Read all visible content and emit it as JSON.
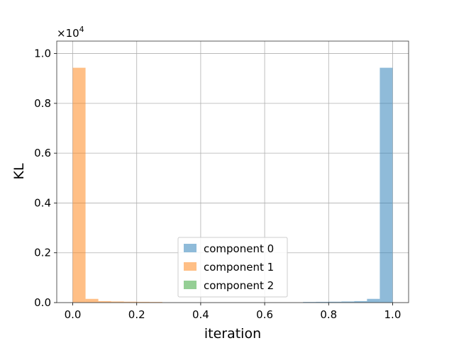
{
  "chart_data": {
    "type": "bar",
    "xlabel": "iteration",
    "ylabel": "KL",
    "scale_label": "×10",
    "scale_exponent": "4",
    "xlim": [
      -0.05,
      1.05
    ],
    "ylim": [
      0,
      10500
    ],
    "grid": true,
    "legend_position": "lower-center",
    "x_ticks": [
      {
        "value": 0.0,
        "label": "0.0"
      },
      {
        "value": 0.2,
        "label": "0.2"
      },
      {
        "value": 0.4,
        "label": "0.4"
      },
      {
        "value": 0.6,
        "label": "0.6"
      },
      {
        "value": 0.8,
        "label": "0.8"
      },
      {
        "value": 1.0,
        "label": "1.0"
      }
    ],
    "y_ticks": [
      {
        "value": 0,
        "label": "0.0"
      },
      {
        "value": 2000,
        "label": "0.2"
      },
      {
        "value": 4000,
        "label": "0.4"
      },
      {
        "value": 6000,
        "label": "0.6"
      },
      {
        "value": 8000,
        "label": "0.8"
      },
      {
        "value": 10000,
        "label": "1.0"
      }
    ],
    "bin_edges": [
      0.0,
      0.04,
      0.08,
      0.12,
      0.16,
      0.2,
      0.24,
      0.28,
      0.32,
      0.36,
      0.4,
      0.44,
      0.48,
      0.52,
      0.56,
      0.6,
      0.64,
      0.68,
      0.72,
      0.76,
      0.8,
      0.84,
      0.88,
      0.92,
      0.96,
      1.0
    ],
    "series": [
      {
        "name": "component 0",
        "color": "#1f77b4",
        "values": [
          0,
          0,
          0,
          0,
          0,
          0,
          0,
          0,
          0,
          0,
          0,
          0,
          0,
          0,
          0,
          0,
          0,
          0,
          25,
          30,
          35,
          45,
          60,
          150,
          9430
        ]
      },
      {
        "name": "component 1",
        "color": "#ff7f0e",
        "values": [
          9430,
          150,
          60,
          45,
          35,
          30,
          25,
          0,
          0,
          0,
          0,
          0,
          0,
          0,
          0,
          0,
          0,
          0,
          0,
          0,
          0,
          0,
          0,
          0,
          0
        ]
      },
      {
        "name": "component 2",
        "color": "#2ca02c",
        "values": [
          0,
          0,
          0,
          0,
          0,
          0,
          0,
          0,
          0,
          0,
          0,
          0,
          0,
          0,
          0,
          0,
          0,
          0,
          0,
          0,
          0,
          0,
          0,
          0,
          0
        ]
      }
    ]
  }
}
